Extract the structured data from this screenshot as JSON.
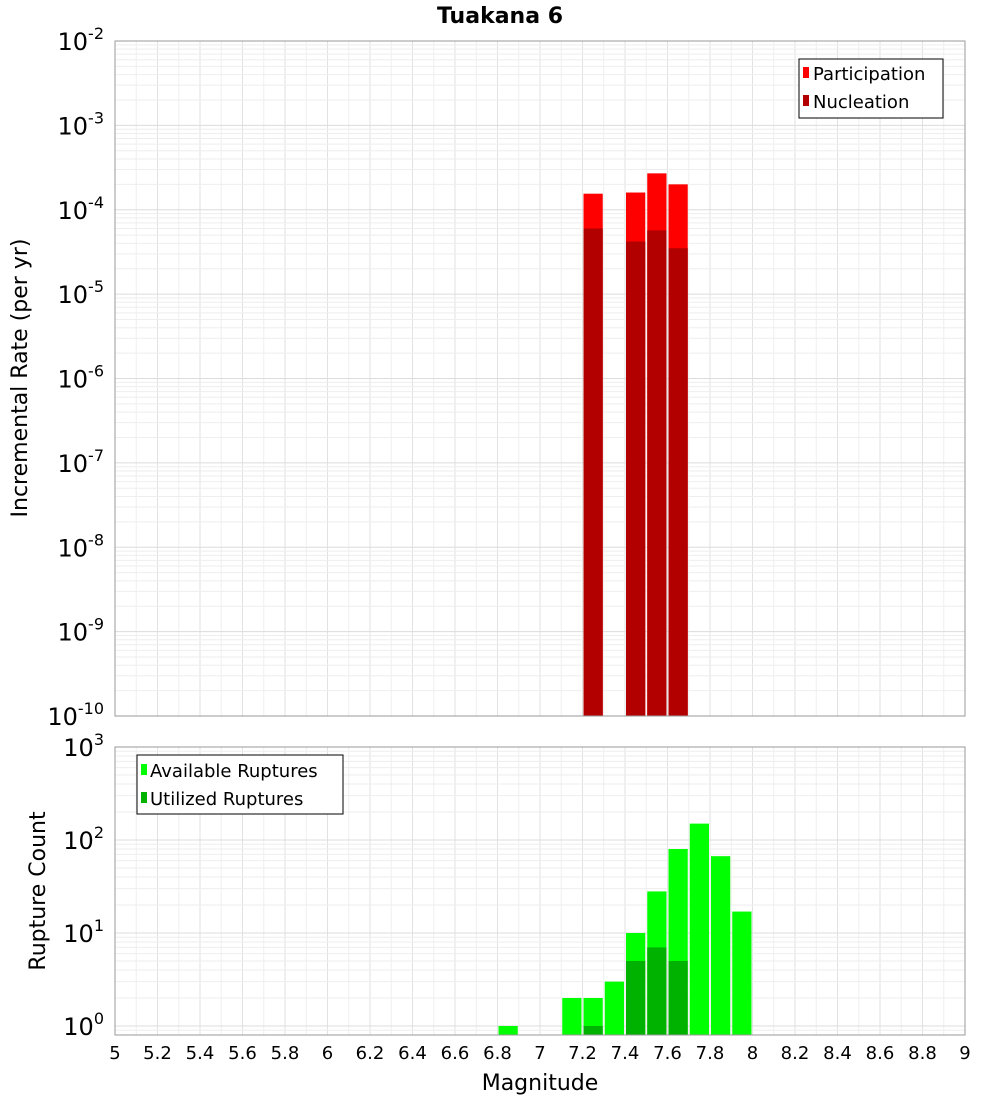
{
  "chart_data": [
    {
      "type": "bar",
      "title": "Tuakana 6",
      "xlabel": "Magnitude",
      "ylabel": "Incremental Rate (per yr)",
      "yscale": "log",
      "xlim": [
        5,
        9
      ],
      "ylim": [
        1e-10,
        0.01
      ],
      "yticks": [
        {
          "base": "10",
          "exp": "-10"
        },
        {
          "base": "10",
          "exp": "-9"
        },
        {
          "base": "10",
          "exp": "-8"
        },
        {
          "base": "10",
          "exp": "-7"
        },
        {
          "base": "10",
          "exp": "-6"
        },
        {
          "base": "10",
          "exp": "-5"
        },
        {
          "base": "10",
          "exp": "-4"
        },
        {
          "base": "10",
          "exp": "-3"
        },
        {
          "base": "10",
          "exp": "-2"
        }
      ],
      "bin_width": 0.1,
      "grid": true,
      "legend_position": "top-right",
      "series": [
        {
          "name": "Participation",
          "color": "#ff0000",
          "points": [
            {
              "x": 7.25,
              "y": 0.000155
            },
            {
              "x": 7.45,
              "y": 0.00016
            },
            {
              "x": 7.55,
              "y": 0.00027
            },
            {
              "x": 7.65,
              "y": 0.0002
            }
          ]
        },
        {
          "name": "Nucleation",
          "color": "#b20000",
          "points": [
            {
              "x": 7.25,
              "y": 6e-05
            },
            {
              "x": 7.45,
              "y": 4.2e-05
            },
            {
              "x": 7.55,
              "y": 5.7e-05
            },
            {
              "x": 7.65,
              "y": 3.5e-05
            }
          ]
        }
      ]
    },
    {
      "type": "bar",
      "xlabel": "Magnitude",
      "ylabel": "Rupture Count",
      "yscale": "log",
      "xlim": [
        5,
        9
      ],
      "ylim": [
        0.8,
        1000
      ],
      "yticks": [
        {
          "base": "10",
          "exp": "0"
        },
        {
          "base": "10",
          "exp": "1"
        },
        {
          "base": "10",
          "exp": "2"
        },
        {
          "base": "10",
          "exp": "3"
        }
      ],
      "xticks": [
        "5",
        "5.2",
        "5.4",
        "5.6",
        "5.8",
        "6",
        "6.2",
        "6.4",
        "6.6",
        "6.8",
        "7",
        "7.2",
        "7.4",
        "7.6",
        "7.8",
        "8",
        "8.2",
        "8.4",
        "8.6",
        "8.8",
        "9"
      ],
      "bin_width": 0.1,
      "grid": true,
      "legend_position": "top-left",
      "series": [
        {
          "name": "Available Ruptures",
          "color": "#00ff00",
          "points": [
            {
              "x": 6.85,
              "y": 1
            },
            {
              "x": 7.15,
              "y": 2
            },
            {
              "x": 7.25,
              "y": 2
            },
            {
              "x": 7.35,
              "y": 3
            },
            {
              "x": 7.45,
              "y": 10
            },
            {
              "x": 7.55,
              "y": 28
            },
            {
              "x": 7.65,
              "y": 80
            },
            {
              "x": 7.75,
              "y": 150
            },
            {
              "x": 7.85,
              "y": 67
            },
            {
              "x": 7.95,
              "y": 17
            }
          ]
        },
        {
          "name": "Utilized Ruptures",
          "color": "#00b200",
          "points": [
            {
              "x": 7.25,
              "y": 1
            },
            {
              "x": 7.45,
              "y": 5
            },
            {
              "x": 7.55,
              "y": 7
            },
            {
              "x": 7.65,
              "y": 5
            }
          ]
        }
      ]
    }
  ]
}
